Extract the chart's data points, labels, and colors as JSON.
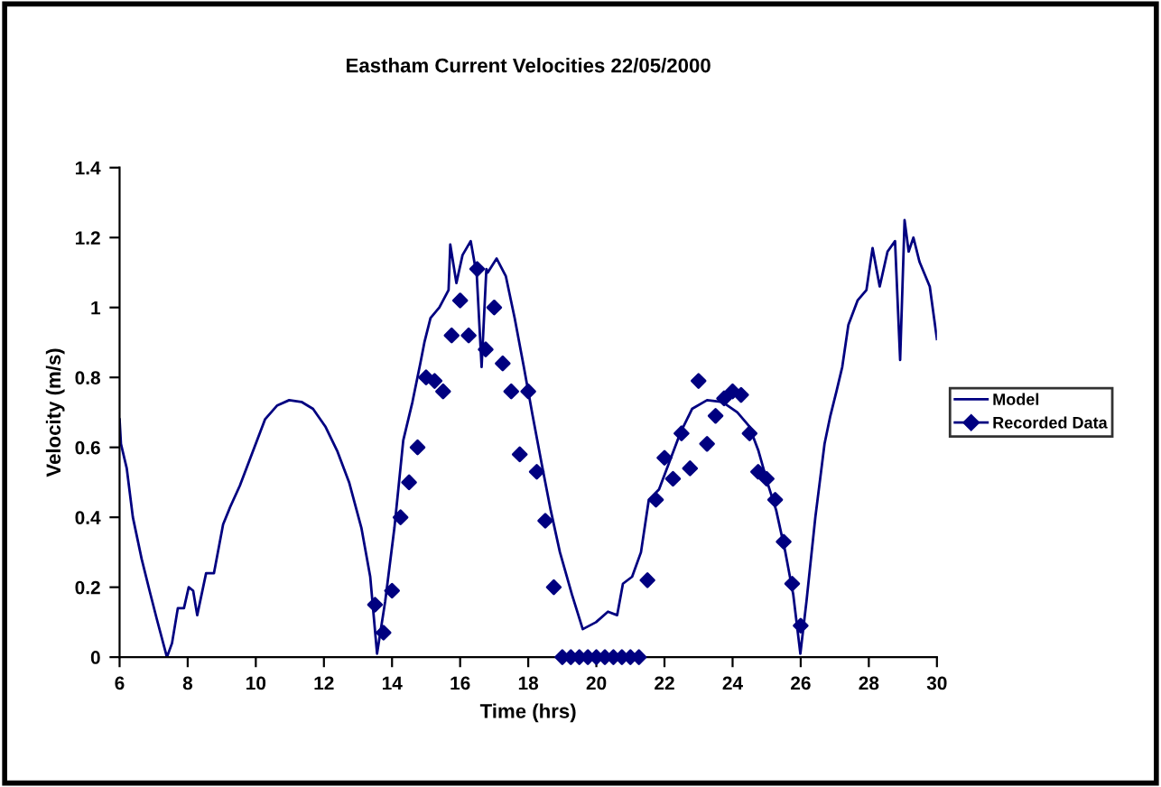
{
  "chart_data": {
    "type": "line",
    "title": "Eastham Current Velocities 22/05/2000",
    "xlabel": "Time (hrs)",
    "ylabel": "Velocity (m/s)",
    "xlim": [
      6,
      30
    ],
    "xticks": [
      6,
      8,
      10,
      12,
      14,
      16,
      18,
      20,
      22,
      24,
      26,
      28,
      30
    ],
    "ylim": [
      0,
      1.4
    ],
    "yticks": [
      0,
      0.2,
      0.4,
      0.6,
      0.8,
      1,
      1.2,
      1.4
    ],
    "grid": false,
    "legend": "right",
    "series": [
      {
        "name": "Model",
        "color": "#000080",
        "marker": "none",
        "x": [
          6,
          6.04,
          6.21,
          6.39,
          6.65,
          6.88,
          7.09,
          7.39,
          7.54,
          7.71,
          7.89,
          8.03,
          8.16,
          8.28,
          8.54,
          8.77,
          9.04,
          9.25,
          9.53,
          9.92,
          10.27,
          10.63,
          10.98,
          11.34,
          11.68,
          12.04,
          12.39,
          12.74,
          13.1,
          13.36,
          13.56,
          13.8,
          14.07,
          14.33,
          14.6,
          14.83,
          14.95,
          15.13,
          15.39,
          15.66,
          15.71,
          15.89,
          16.07,
          16.31,
          16.49,
          16.63,
          16.77,
          16.81,
          17.07,
          17.34,
          17.6,
          17.87,
          18.13,
          18.4,
          18.66,
          18.93,
          19.28,
          19.6,
          19.99,
          20.34,
          20.61,
          20.78,
          21.05,
          21.31,
          21.54,
          21.84,
          22.19,
          22.46,
          22.81,
          23.25,
          23.7,
          24.14,
          24.49,
          24.76,
          25.02,
          25.28,
          25.55,
          25.78,
          25.99,
          26.17,
          26.43,
          26.7,
          26.87,
          27.05,
          27.22,
          27.4,
          27.67,
          27.93,
          28.11,
          28.32,
          28.55,
          28.77,
          28.92,
          29.05,
          29.17,
          29.31,
          29.49,
          29.79,
          30
        ],
        "values": [
          0.68,
          0.61,
          0.54,
          0.4,
          0.28,
          0.19,
          0.11,
          0.0,
          0.04,
          0.14,
          0.14,
          0.2,
          0.19,
          0.12,
          0.24,
          0.24,
          0.38,
          0.43,
          0.49,
          0.59,
          0.68,
          0.72,
          0.735,
          0.73,
          0.71,
          0.66,
          0.59,
          0.5,
          0.37,
          0.23,
          0.01,
          0.16,
          0.37,
          0.62,
          0.73,
          0.84,
          0.9,
          0.97,
          1.0,
          1.05,
          1.18,
          1.07,
          1.15,
          1.19,
          1.09,
          0.83,
          1.11,
          1.1,
          1.14,
          1.09,
          0.97,
          0.83,
          0.69,
          0.55,
          0.42,
          0.3,
          0.18,
          0.08,
          0.1,
          0.13,
          0.12,
          0.21,
          0.23,
          0.3,
          0.45,
          0.48,
          0.57,
          0.64,
          0.71,
          0.735,
          0.73,
          0.7,
          0.66,
          0.59,
          0.5,
          0.42,
          0.3,
          0.18,
          0.01,
          0.16,
          0.4,
          0.61,
          0.69,
          0.76,
          0.83,
          0.95,
          1.02,
          1.05,
          1.17,
          1.06,
          1.16,
          1.19,
          0.85,
          1.25,
          1.16,
          1.2,
          1.13,
          1.06,
          0.91
        ]
      },
      {
        "name": "Recorded Data",
        "color": "#000080",
        "type": "scatter",
        "marker": "diamond",
        "x": [
          13.5,
          13.75,
          14,
          14.25,
          14.5,
          14.75,
          15,
          15.25,
          15.5,
          15.75,
          16,
          16.25,
          16.5,
          16.75,
          17,
          17.25,
          17.5,
          17.75,
          18,
          18.25,
          18.5,
          18.75,
          19,
          19.25,
          19.5,
          19.75,
          20,
          20.25,
          20.5,
          20.75,
          21,
          21.25,
          21.5,
          21.75,
          22,
          22.25,
          22.5,
          22.75,
          23,
          23.25,
          23.5,
          23.75,
          24,
          24.25,
          24.5,
          24.75,
          25,
          25.25,
          25.5,
          25.75,
          26
        ],
        "values": [
          0.15,
          0.07,
          0.19,
          0.4,
          0.5,
          0.6,
          0.8,
          0.79,
          0.76,
          0.92,
          1.02,
          0.92,
          1.11,
          0.88,
          1.0,
          0.84,
          0.76,
          0.58,
          0.76,
          0.53,
          0.39,
          0.2,
          0,
          0,
          0,
          0,
          0,
          0,
          0,
          0,
          0,
          0,
          0.22,
          0.45,
          0.57,
          0.51,
          0.64,
          0.54,
          0.79,
          0.61,
          0.69,
          0.74,
          0.76,
          0.75,
          0.64,
          0.53,
          0.51,
          0.45,
          0.33,
          0.21,
          0.09
        ]
      }
    ]
  }
}
